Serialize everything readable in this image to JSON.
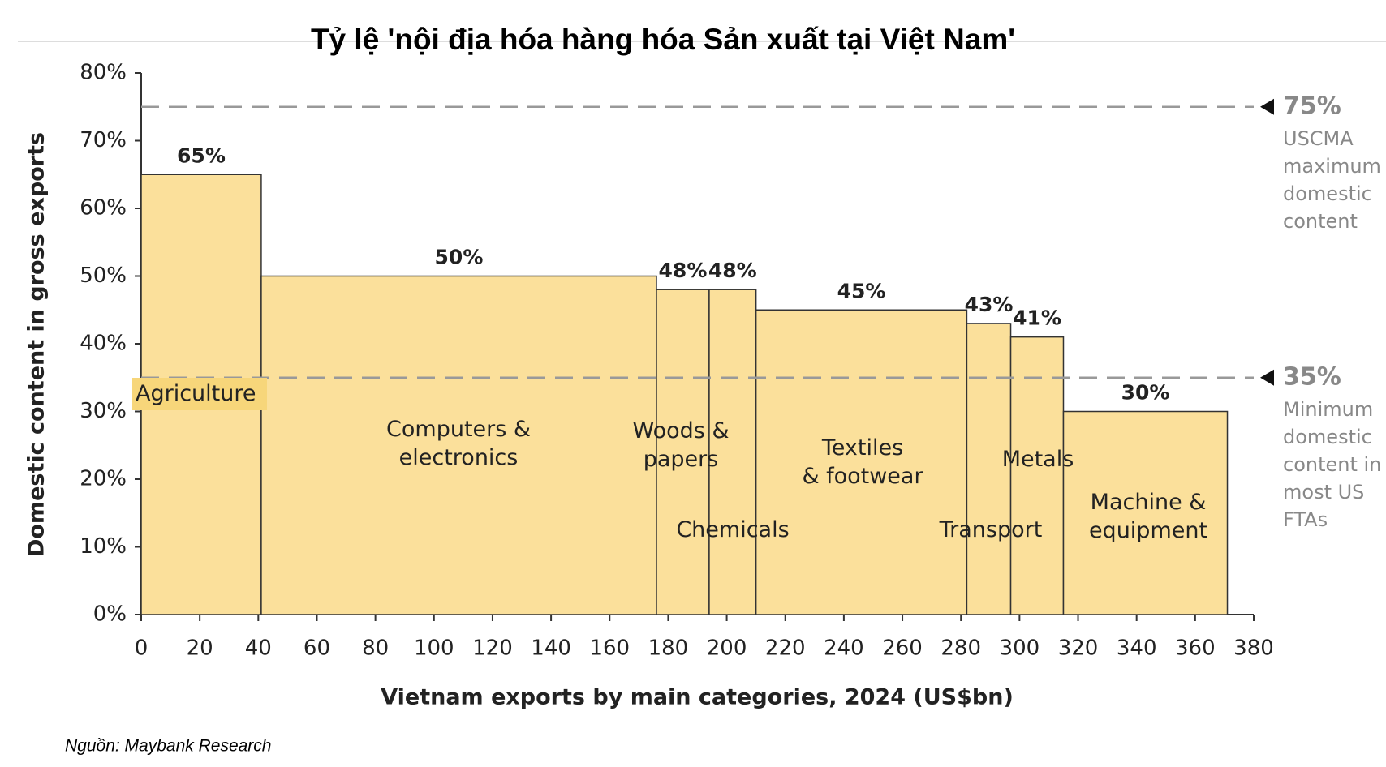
{
  "chart_data": {
    "type": "variable-width-bar",
    "title": "Tỷ lệ 'nội địa hóa hàng hóa Sản xuất tại Việt Nam'",
    "y_label": "Domestic content in gross exports",
    "x_label": "Vietnam exports by main categories, 2024 (US$bn)",
    "source": "Nguồn: Maybank Research",
    "categories": [
      "Agriculture",
      "Computers &\nelectronics",
      "Woods &\npapers",
      "Chemicals",
      "Textiles\n& footwear",
      "Transport",
      "Metals",
      "Machine &\nequipment"
    ],
    "x_edges": [
      0,
      41,
      176,
      194,
      210,
      282,
      297,
      315,
      371
    ],
    "values": [
      65,
      50,
      48,
      48,
      45,
      43,
      41,
      30
    ],
    "value_labels": [
      "65%",
      "50%",
      "48%",
      "48%",
      "45%",
      "43%",
      "41%",
      "30%"
    ],
    "color": "#fbe09b",
    "xlim": [
      0,
      380
    ],
    "xticks": [
      0,
      20,
      40,
      60,
      80,
      100,
      120,
      140,
      160,
      180,
      200,
      220,
      240,
      260,
      280,
      300,
      320,
      340,
      360,
      380
    ],
    "ylim": [
      0,
      80
    ],
    "yticks": [
      {
        "value": 0,
        "label": "0%"
      },
      {
        "value": 10,
        "label": "10%"
      },
      {
        "value": 20,
        "label": "20%"
      },
      {
        "value": 30,
        "label": "30%"
      },
      {
        "value": 40,
        "label": "40%"
      },
      {
        "value": 50,
        "label": "50%"
      },
      {
        "value": 60,
        "label": "60%"
      },
      {
        "value": 70,
        "label": "70%"
      },
      {
        "value": 80,
        "label": "80%"
      }
    ],
    "reference_lines": [
      {
        "value": 75,
        "label": "75%",
        "note": [
          "USCMA",
          "maximum",
          "domestic",
          "content"
        ]
      },
      {
        "value": 35,
        "label": "35%",
        "note": [
          "Minimum",
          "domestic",
          "content in",
          "most US",
          "FTAs"
        ]
      }
    ]
  }
}
